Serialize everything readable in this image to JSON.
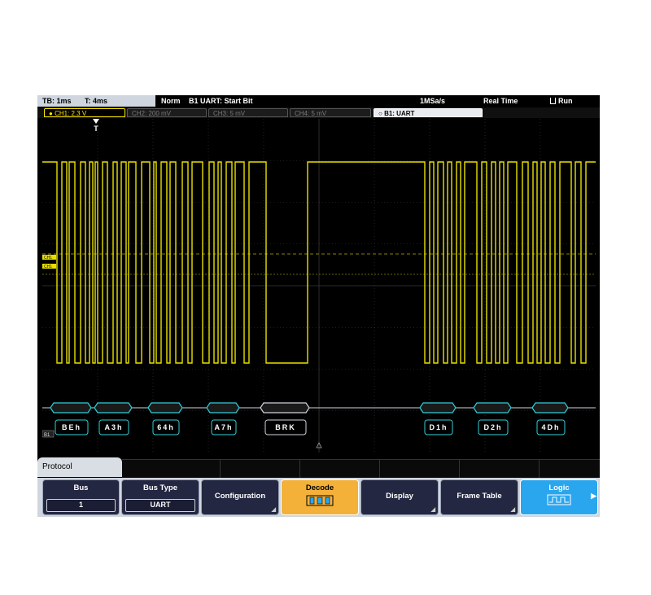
{
  "topbar": {
    "tb": "TB: 1ms",
    "t": "T: 4ms",
    "mode": "Norm",
    "trigger": "B1 UART:  Start Bit",
    "rate": "1MSa/s",
    "acq": "Real Time",
    "run": "Run"
  },
  "tabs": {
    "ch1": "CH1: 2.3 V",
    "ch2": "CH2: 200 mV",
    "ch3": "CH3: 5 mV",
    "ch4": "CH4: 5 mV",
    "b1": "B1:  UART"
  },
  "markers": {
    "trigger": "T",
    "bus": "B1",
    "ch_a": "CH1",
    "ch_b": "CH1"
  },
  "decode": {
    "frames": [
      "BEh",
      "A3h",
      "64h",
      "A7h",
      "BRK",
      "D1h",
      "D2h",
      "4Dh"
    ]
  },
  "protocol_tab": "Protocol",
  "softkeys": {
    "bus_label": "Bus",
    "bus_value": "1",
    "bustype_label": "Bus Type",
    "bustype_value": "UART",
    "configuration": "Configuration",
    "decode": "Decode",
    "display": "Display",
    "frame_table": "Frame Table",
    "logic": "Logic"
  },
  "colors": {
    "trace": "#e8e000",
    "decode_line": "#2fd0d8",
    "grid": "#3a3a3a"
  }
}
